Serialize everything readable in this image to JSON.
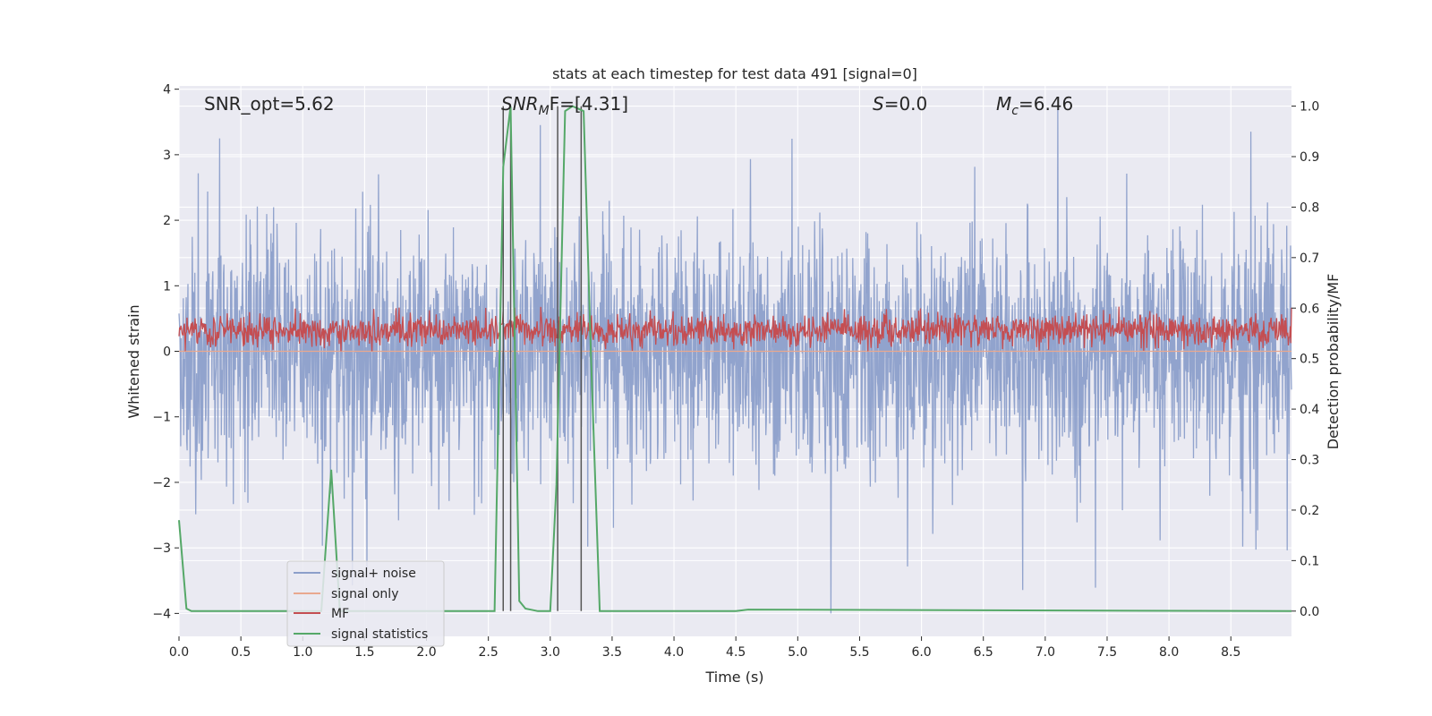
{
  "chart_data": {
    "type": "line",
    "title": "stats at each timestep for test data 491 [signal=0]",
    "xlabel": "Time (s)",
    "ylabel": "Whitened strain",
    "y2label": "Detection probability/MF",
    "xlim": [
      0.0,
      8.99
    ],
    "ylim": [
      -4.35,
      4.05
    ],
    "y2lim": [
      -0.05,
      1.04
    ],
    "xticks": [
      "0.0",
      "0.5",
      "1.0",
      "1.5",
      "2.0",
      "2.5",
      "3.0",
      "3.5",
      "4.0",
      "4.5",
      "5.0",
      "5.5",
      "6.0",
      "6.5",
      "7.0",
      "7.5",
      "8.0",
      "8.5"
    ],
    "yticks": [
      "4",
      "3",
      "2",
      "1",
      "0",
      "−1",
      "−2",
      "−3",
      "−4"
    ],
    "y2ticks": [
      "1.0",
      "0.9",
      "0.8",
      "0.7",
      "0.6",
      "0.5",
      "0.4",
      "0.3",
      "0.2",
      "0.1",
      "0.0"
    ],
    "grid": true,
    "legend_position": "lower-left",
    "annotations": {
      "snr_opt": "SNR_opt=5.62",
      "snr_mf_main": "SNR",
      "snr_mf_sub": "M",
      "snr_mf_tail": "F=[4.31]",
      "s_sym": "S",
      "s_val": "=0.0",
      "mc_sym": "M",
      "mc_sub": "c",
      "mc_val": "=6.46"
    },
    "series": [
      {
        "name": "signal+ noise",
        "color": "#8c9fca",
        "approx_envelope": {
          "typical_abs": 1.9,
          "peak_pos": 3.7,
          "peak_neg": -4.0
        }
      },
      {
        "name": "signal only",
        "color": "#e9a88f",
        "values": "approximately 0 throughout"
      },
      {
        "name": "MF",
        "color": "#c44e52",
        "approx_band": [
          0.0,
          0.95
        ]
      },
      {
        "name": "signal statistics",
        "color": "#55a868",
        "x": [
          0.0,
          0.06,
          0.1,
          1.15,
          1.23,
          1.3,
          2.55,
          2.62,
          2.68,
          2.75,
          2.8,
          2.9,
          3.0,
          3.05,
          3.12,
          3.18,
          3.27,
          3.33,
          3.4,
          4.5,
          4.6,
          8.99
        ],
        "y": [
          0.18,
          0.005,
          0.0,
          0.0,
          0.28,
          0.0,
          0.0,
          0.88,
          1.0,
          0.02,
          0.005,
          0.0,
          0.0,
          0.25,
          0.99,
          1.0,
          0.99,
          0.5,
          0.0,
          0.0,
          0.003,
          0.0
        ]
      }
    ],
    "vertical_lines_x": [
      2.62,
      2.68,
      3.06,
      3.25
    ]
  }
}
